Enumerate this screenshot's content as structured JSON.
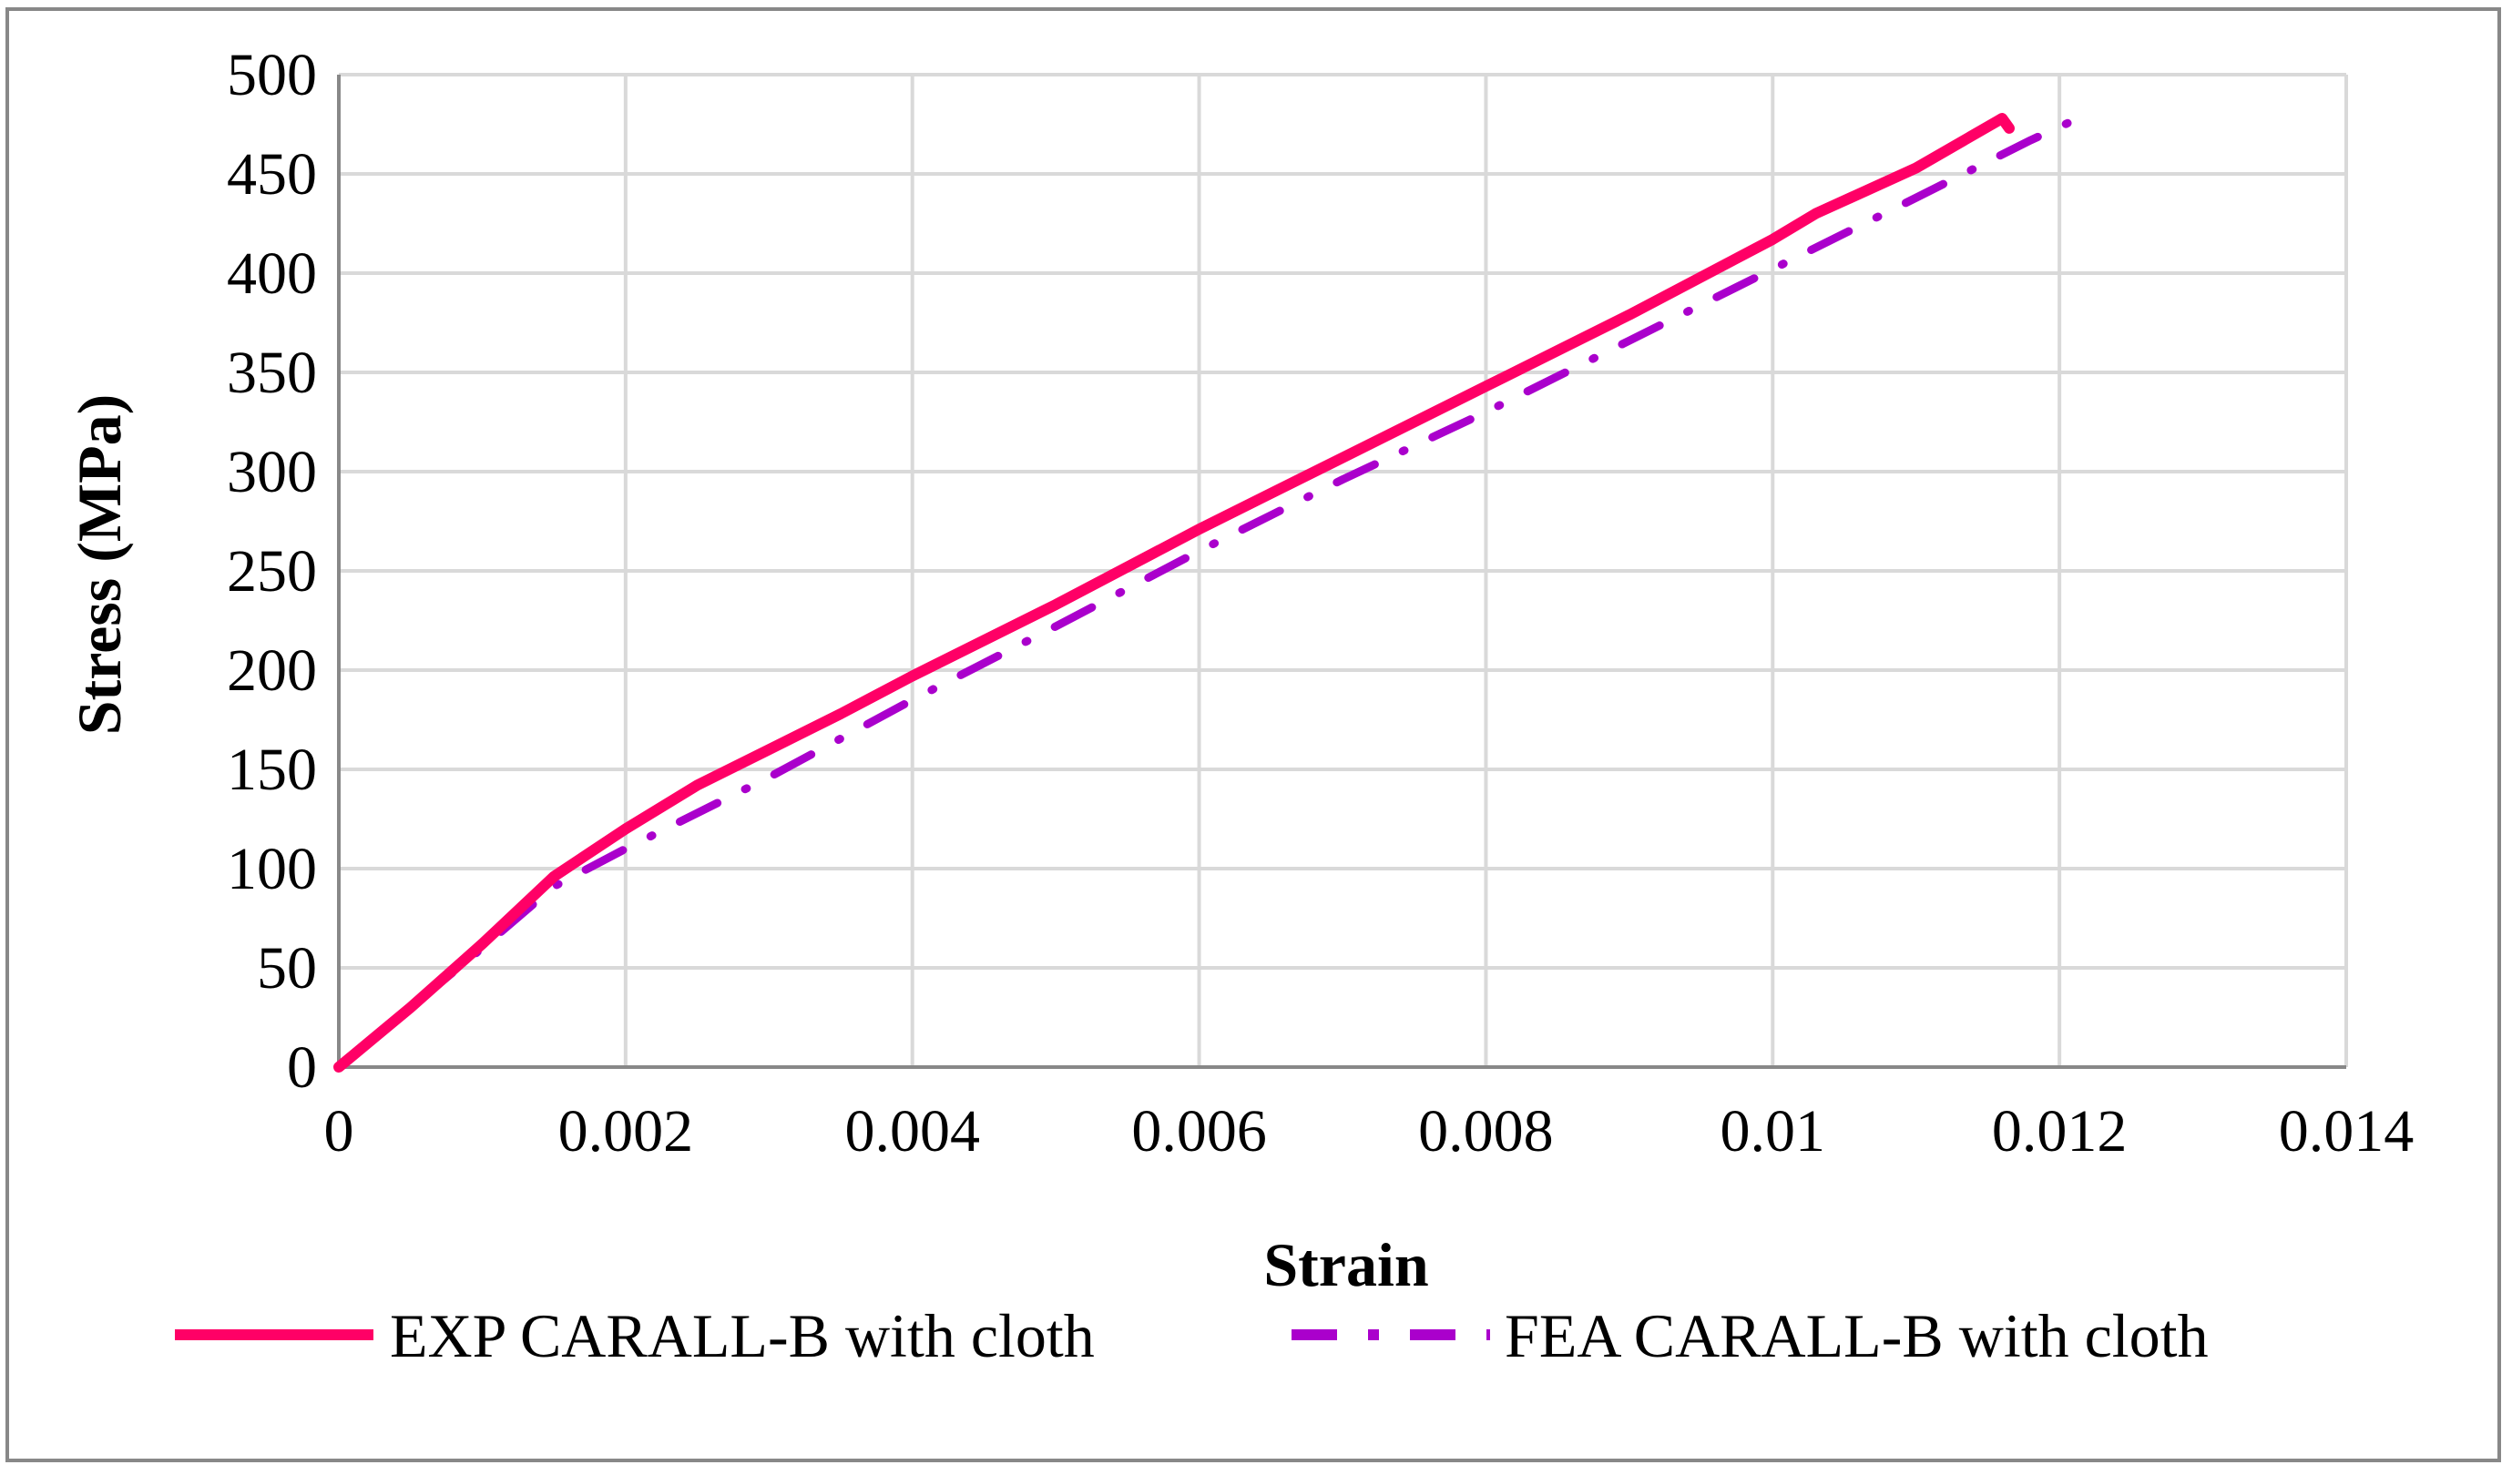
{
  "chart_data": {
    "type": "line",
    "title": "",
    "xlabel": "Strain",
    "ylabel": "Stress (MPa)",
    "xlim": [
      0,
      0.014
    ],
    "ylim": [
      0,
      500
    ],
    "x_ticks": [
      0,
      0.002,
      0.004,
      0.006,
      0.008,
      0.01,
      0.012,
      0.014
    ],
    "x_tick_labels": [
      "0",
      "0.002",
      "0.004",
      "0.006",
      "0.008",
      "0.01",
      "0.012",
      "0.014"
    ],
    "y_ticks": [
      0,
      50,
      100,
      150,
      200,
      250,
      300,
      350,
      400,
      450,
      500
    ],
    "y_tick_labels": [
      "0",
      "50",
      "100",
      "150",
      "200",
      "250",
      "300",
      "350",
      "400",
      "450",
      "500"
    ],
    "grid": true,
    "legend_position": "bottom",
    "series": [
      {
        "name": "EXP CARALL-B with cloth",
        "color": "#ff0066",
        "style": "solid",
        "points": [
          [
            0,
            0
          ],
          [
            0.0005,
            30
          ],
          [
            0.001,
            62
          ],
          [
            0.0015,
            96
          ],
          [
            0.002,
            120
          ],
          [
            0.0025,
            142
          ],
          [
            0.003,
            160
          ],
          [
            0.0035,
            178
          ],
          [
            0.004,
            197
          ],
          [
            0.005,
            233
          ],
          [
            0.006,
            271
          ],
          [
            0.007,
            307
          ],
          [
            0.008,
            343
          ],
          [
            0.009,
            379
          ],
          [
            0.01,
            417
          ],
          [
            0.0103,
            430
          ],
          [
            0.011,
            453
          ],
          [
            0.0116,
            478
          ],
          [
            0.01165,
            473
          ]
        ]
      },
      {
        "name": "FEA CARALL-B with cloth",
        "color": "#aa00cc",
        "style": "dash-dot",
        "points": [
          [
            0,
            0
          ],
          [
            0.001,
            60
          ],
          [
            0.0015,
            91
          ],
          [
            0.002,
            110
          ],
          [
            0.003,
            146
          ],
          [
            0.004,
            185
          ],
          [
            0.005,
            222
          ],
          [
            0.006,
            260
          ],
          [
            0.007,
            296
          ],
          [
            0.008,
            330
          ],
          [
            0.009,
            366
          ],
          [
            0.01,
            402
          ],
          [
            0.011,
            438
          ],
          [
            0.0118,
            467
          ],
          [
            0.0121,
            477
          ]
        ]
      }
    ]
  }
}
